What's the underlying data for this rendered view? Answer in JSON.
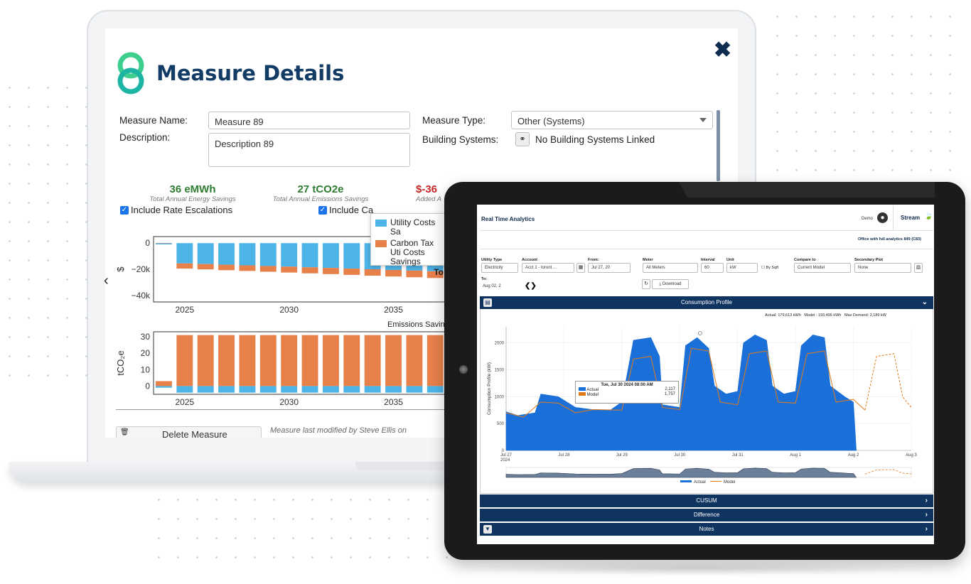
{
  "measure": {
    "title": "Measure Details",
    "name_label": "Measure Name:",
    "name_value": "Measure 89",
    "description_label": "Description:",
    "description_value": "Description 89",
    "type_label": "Measure Type:",
    "type_value": "Other (Systems)",
    "systems_label": "Building Systems:",
    "systems_value": "No Building Systems Linked",
    "stats": [
      {
        "value": "36 eMWh",
        "caption": "Total Annual Energy Savings",
        "color": "#2e7d32"
      },
      {
        "value": "27 tCO2e",
        "caption": "Total Annual Emissions Savings",
        "color": "#2e7d32"
      },
      {
        "value": "$-36",
        "caption": "Added A",
        "color": "#c62828"
      }
    ],
    "check_rate": "Include Rate Escalations",
    "check_carbon": "Include Ca",
    "delete_label": "Delete Measure",
    "modified_text": "Measure last modified by Steve Ellis on",
    "emissions_title": "Emissions Savings",
    "cost_chart": {
      "type": "bar",
      "y_ticks": [
        "0",
        "−20k",
        "−40k"
      ],
      "ylabel": "$",
      "x_ticks": [
        "2025",
        "2030",
        "2035"
      ],
      "ylim": [
        -45000,
        5000
      ],
      "categories": [
        2024,
        2025,
        2026,
        2027,
        2028,
        2029,
        2030,
        2031,
        2032,
        2033,
        2034,
        2035,
        2036,
        2037
      ],
      "series": [
        {
          "name": "Utility Costs Sa",
          "color": "#4db4e8",
          "values": [
            -1000,
            -15500,
            -16000,
            -16500,
            -17000,
            -17500,
            -18000,
            -18500,
            -19000,
            -19500,
            -20000,
            -20500,
            -21000,
            -21500
          ]
        },
        {
          "name": "Carbon Tax Uti Costs Savings",
          "color": "#e8804a",
          "values": [
            0,
            -4000,
            -4100,
            -4200,
            -4300,
            -4400,
            -4500,
            -4600,
            -4700,
            -4800,
            -4900,
            -5000,
            -5100,
            -5200
          ]
        }
      ],
      "legend_extra": "To"
    },
    "emissions_chart": {
      "type": "bar",
      "y_ticks": [
        "30",
        "20",
        "10",
        "0"
      ],
      "ylabel": "tCO₂e",
      "x_ticks": [
        "2025",
        "2030",
        "2035"
      ],
      "ylim": [
        -5,
        33
      ],
      "categories": [
        2024,
        2025,
        2026,
        2027,
        2028,
        2029,
        2030,
        2031,
        2032,
        2033,
        2034,
        2035,
        2036,
        2037
      ],
      "series": [
        {
          "name": "Carbon",
          "color": "#e8804a",
          "values": [
            3,
            31,
            31,
            31,
            31,
            31,
            31,
            31,
            31,
            31,
            31,
            31,
            31,
            31
          ]
        },
        {
          "name": "Utility",
          "color": "#4db4e8",
          "values": [
            -1,
            -4,
            -4,
            -4,
            -4,
            -4,
            -4,
            -4,
            -4,
            -4,
            -4,
            -4,
            -4,
            -4
          ]
        }
      ]
    }
  },
  "rta": {
    "title": "Real Time Analytics",
    "user": "Demo",
    "brand": "Stream",
    "subtitle": "Office with full analytics 849 (C83)",
    "filters": {
      "utility_type_label": "Utility Type",
      "utility_type": "Electricity",
      "account_label": "Account",
      "account": "Acct 1 - toront ...",
      "from_label": "From:",
      "from": "Jul 27, 20",
      "to_label": "To:",
      "to": "Aug 02, 2",
      "meter_label": "Meter",
      "meter": "All Meters",
      "interval_label": "Interval",
      "interval": "60",
      "unit_label": "Unit",
      "unit": "kW",
      "by_sqft": "By Sqft",
      "compare_label": "Compare to",
      "compare": "Current Model",
      "secondary_label": "Secondary Plot",
      "secondary": "None",
      "download": "Download"
    },
    "consumption_title": "Consumption Profile",
    "summary": {
      "actual": "Actual: 179,613 kWh",
      "model": "Model : 193,496 kWh",
      "max_demand": "Max Demand: 2,189 kW"
    },
    "tooltip": {
      "date": "Tue, Jul 30 2024 08:00 AM",
      "actual_label": "Actual",
      "actual": "2,117",
      "model_label": "Model",
      "model": "1,757"
    },
    "chart_data": {
      "type": "area",
      "ylabel": "Consumption Profile (kW)",
      "y_ticks": [
        "2000",
        "1500",
        "1000",
        "500",
        "0"
      ],
      "ylim": [
        0,
        2300
      ],
      "x_ticks": [
        "Jul 27\n2024",
        "Jul 28",
        "Jul 29",
        "Jul 30",
        "Jul 31",
        "Aug 1",
        "Aug 2",
        "Aug 3"
      ],
      "x_days": [
        0,
        7
      ],
      "series": [
        {
          "name": "Actual",
          "color": "#1a6fd8",
          "points": [
            [
              0,
              720
            ],
            [
              0.2,
              650
            ],
            [
              0.5,
              700
            ],
            [
              0.6,
              1050
            ],
            [
              0.9,
              1000
            ],
            [
              1.2,
              800
            ],
            [
              1.5,
              760
            ],
            [
              1.8,
              750
            ],
            [
              2.0,
              900
            ],
            [
              2.2,
              2050
            ],
            [
              2.5,
              2100
            ],
            [
              2.65,
              1750
            ],
            [
              2.7,
              850
            ],
            [
              3.0,
              800
            ],
            [
              3.1,
              1950
            ],
            [
              3.3,
              2100
            ],
            [
              3.5,
              1900
            ],
            [
              3.6,
              1200
            ],
            [
              3.8,
              1050
            ],
            [
              4.0,
              1100
            ],
            [
              4.1,
              2000
            ],
            [
              4.3,
              2150
            ],
            [
              4.5,
              2050
            ],
            [
              4.6,
              1200
            ],
            [
              4.8,
              1050
            ],
            [
              5.0,
              1100
            ],
            [
              5.1,
              1950
            ],
            [
              5.3,
              2150
            ],
            [
              5.5,
              2100
            ],
            [
              5.6,
              1200
            ],
            [
              5.85,
              1000
            ],
            [
              6.0,
              900
            ],
            [
              6.05,
              0
            ]
          ]
        },
        {
          "name": "Model",
          "color": "#e07b1a",
          "points": [
            [
              0,
              700
            ],
            [
              0.3,
              620
            ],
            [
              0.6,
              900
            ],
            [
              0.9,
              880
            ],
            [
              1.2,
              700
            ],
            [
              1.5,
              760
            ],
            [
              2.0,
              750
            ],
            [
              2.2,
              1700
            ],
            [
              2.5,
              1750
            ],
            [
              2.7,
              800
            ],
            [
              3.0,
              760
            ],
            [
              3.2,
              1900
            ],
            [
              3.5,
              1850
            ],
            [
              3.7,
              900
            ],
            [
              4.0,
              850
            ],
            [
              4.2,
              1800
            ],
            [
              4.5,
              1850
            ],
            [
              4.7,
              900
            ],
            [
              5.0,
              880
            ],
            [
              5.2,
              1800
            ],
            [
              5.5,
              1850
            ],
            [
              5.7,
              900
            ],
            [
              6.0,
              950
            ],
            [
              6.2,
              750
            ],
            [
              6.4,
              1750
            ],
            [
              6.7,
              1800
            ],
            [
              6.85,
              1000
            ],
            [
              7.0,
              800
            ]
          ]
        }
      ],
      "legend": [
        "Actual",
        "Model"
      ]
    },
    "sections": [
      "CUSUM",
      "Difference",
      "Notes"
    ]
  }
}
